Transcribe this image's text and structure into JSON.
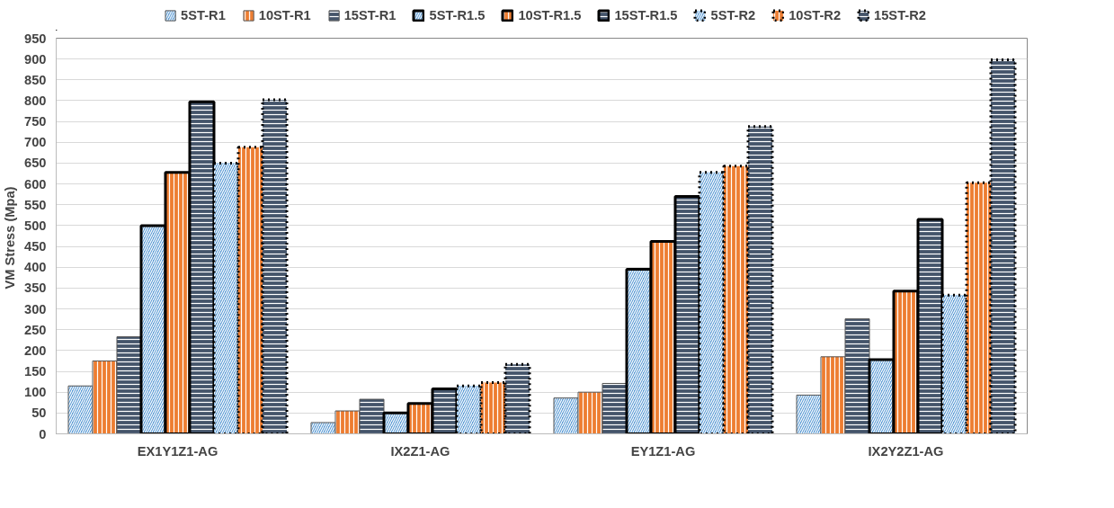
{
  "chart_data": {
    "type": "bar",
    "ylabel": "VM Stress  (Mpa)",
    "categories": [
      "EX1Y1Z1-AG",
      "IX2Z1-AG",
      "EY1Z1-AG",
      "IX2Y2Z1-AG"
    ],
    "ylim": [
      0,
      950
    ],
    "yticks": [
      0,
      50,
      100,
      150,
      200,
      250,
      300,
      350,
      400,
      450,
      500,
      550,
      600,
      650,
      700,
      750,
      800,
      850,
      900,
      950
    ],
    "grid": "y",
    "legend": "top",
    "series": [
      {
        "name": "5ST-R1",
        "color": "#5b9bd5",
        "line_style": "solid",
        "values": [
          115,
          27,
          86,
          93
        ]
      },
      {
        "name": "10ST-R1",
        "color": "#ed7d31",
        "line_style": "solid",
        "values": [
          175,
          55,
          100,
          185
        ]
      },
      {
        "name": "15ST-R1",
        "color": "#44546a",
        "line_style": "solid",
        "values": [
          233,
          83,
          121,
          276
        ]
      },
      {
        "name": "5ST-R1.5",
        "color": "#5b9bd5",
        "line_style": "solid",
        "values": [
          500,
          50,
          395,
          178
        ]
      },
      {
        "name": "10ST-R1.5",
        "color": "#ed7d31",
        "line_style": "solid",
        "values": [
          628,
          73,
          462,
          343
        ]
      },
      {
        "name": "15ST-R1.5",
        "color": "#44546a",
        "line_style": "solid",
        "values": [
          797,
          108,
          570,
          515
        ]
      },
      {
        "name": "5ST-R2",
        "color": "#5b9bd5",
        "line_style": "dotted",
        "values": [
          650,
          115,
          628,
          333
        ]
      },
      {
        "name": "10ST-R2",
        "color": "#ed7d31",
        "line_style": "dotted",
        "values": [
          688,
          123,
          643,
          603
        ]
      },
      {
        "name": "15ST-R2",
        "color": "#44546a",
        "line_style": "dotted",
        "values": [
          802,
          167,
          738,
          898
        ]
      }
    ]
  }
}
